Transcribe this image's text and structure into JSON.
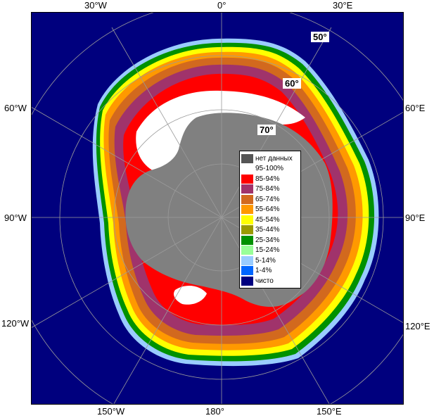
{
  "map": {
    "longitude_labels": {
      "top": [
        "30°W",
        "0°",
        "30°E"
      ],
      "left": [
        "60°W",
        "90°W",
        "120°W"
      ],
      "right": [
        "60°E",
        "90°E",
        "120°E"
      ],
      "bottom": [
        "150°W",
        "180°",
        "150°E"
      ]
    },
    "latitude_labels": [
      "50°",
      "60°",
      "70°"
    ],
    "colors": {
      "ocean": "#00007e",
      "land": "#808080",
      "grid": "#808080"
    }
  },
  "legend": {
    "items": [
      {
        "label": "нет данных",
        "color": "#555555"
      },
      {
        "label": "95-100%",
        "color": "#ffffff"
      },
      {
        "label": "85-94%",
        "color": "#ff0000"
      },
      {
        "label": "75-84%",
        "color": "#a0336b"
      },
      {
        "label": "65-74%",
        "color": "#d2691e"
      },
      {
        "label": "55-64%",
        "color": "#ff9900"
      },
      {
        "label": "45-54%",
        "color": "#ffff00"
      },
      {
        "label": "35-44%",
        "color": "#9a9a00"
      },
      {
        "label": "25-34%",
        "color": "#009100"
      },
      {
        "label": "15-24%",
        "color": "#99ff99"
      },
      {
        "label": "5-14%",
        "color": "#99ccff"
      },
      {
        "label": "1-4%",
        "color": "#0066ff"
      },
      {
        "label": "чисто",
        "color": "#000080"
      }
    ]
  }
}
